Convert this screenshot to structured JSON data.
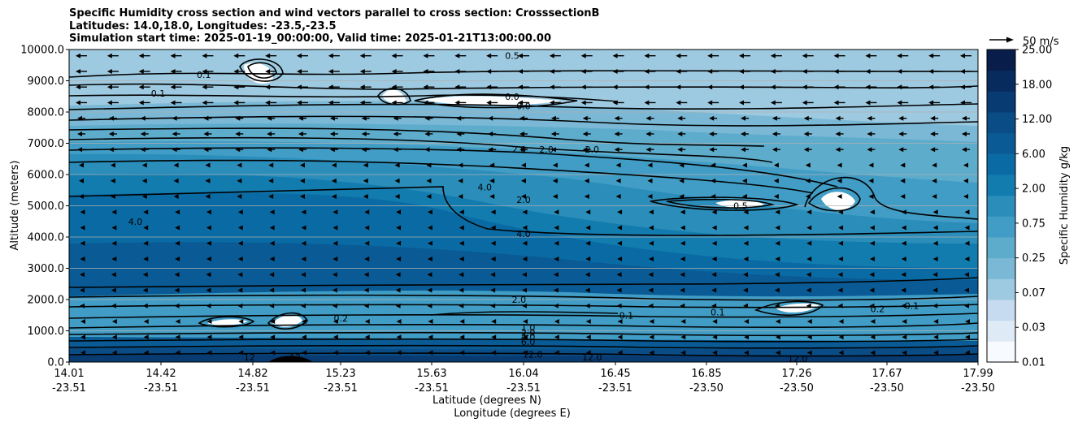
{
  "title_lines": [
    "Specific Humidity cross section and wind vectors parallel to cross section: CrosssectionB",
    "Latitudes: 14.0,18.0, Longitudes: -23.5,-23.5",
    "Simulation start time: 2025-01-19_00:00:00, Valid time: 2025-01-21T13:00:00.00"
  ],
  "chart_data": {
    "type": "heatmap",
    "ylabel": "Altitude (meters)",
    "xlabel_lines": [
      "Latitude (degrees N)",
      "Longitude (degrees E)"
    ],
    "ylim": [
      0,
      10000
    ],
    "yticks": [
      "0.0",
      "1000.0",
      "2000.0",
      "3000.0",
      "4000.0",
      "5000.0",
      "6000.0",
      "7000.0",
      "8000.0",
      "9000.0",
      "10000.0"
    ],
    "xticks": [
      {
        "lat": "14.01",
        "lon": "-23.51"
      },
      {
        "lat": "14.42",
        "lon": "-23.51"
      },
      {
        "lat": "14.82",
        "lon": "-23.51"
      },
      {
        "lat": "15.23",
        "lon": "-23.51"
      },
      {
        "lat": "15.63",
        "lon": "-23.51"
      },
      {
        "lat": "16.04",
        "lon": "-23.51"
      },
      {
        "lat": "16.45",
        "lon": "-23.51"
      },
      {
        "lat": "16.85",
        "lon": "-23.50"
      },
      {
        "lat": "17.26",
        "lon": "-23.50"
      },
      {
        "lat": "17.67",
        "lon": "-23.50"
      },
      {
        "lat": "17.99",
        "lon": "-23.50"
      }
    ],
    "colorbar_label": "Specific Humidity g/kg",
    "colorbar_ticks": [
      "0.01",
      "0.03",
      "0.07",
      "0.25",
      "0.75",
      "2.00",
      "6.00",
      "12.00",
      "18.00",
      "25.00"
    ],
    "quiver_key": "50 m/s",
    "contour_labels": [
      {
        "text": "0.0",
        "lat": 15.95,
        "alt": 8500
      },
      {
        "text": "0.0",
        "lat": 16.0,
        "alt": 8200
      },
      {
        "text": "2.0",
        "lat": 15.98,
        "alt": 6800
      },
      {
        "text": "2.0",
        "lat": 16.1,
        "alt": 6800
      },
      {
        "text": "2.0",
        "lat": 16.3,
        "alt": 6800
      },
      {
        "text": "2.0",
        "lat": 16.0,
        "alt": 5200
      },
      {
        "text": "4.0",
        "lat": 16.0,
        "alt": 4100
      },
      {
        "text": "4.0",
        "lat": 15.83,
        "alt": 5600
      },
      {
        "text": "4.0",
        "lat": 14.3,
        "alt": 4500
      },
      {
        "text": "2.0",
        "lat": 15.98,
        "alt": 2000
      },
      {
        "text": "1.0",
        "lat": 16.02,
        "alt": 1100
      },
      {
        "text": "2.0",
        "lat": 16.02,
        "alt": 950
      },
      {
        "text": "4.0",
        "lat": 16.02,
        "alt": 800
      },
      {
        "text": "6.0",
        "lat": 16.02,
        "alt": 650
      },
      {
        "text": "12.0",
        "lat": 16.04,
        "alt": 250
      },
      {
        "text": "12.0",
        "lat": 16.3,
        "alt": 150
      },
      {
        "text": "12.0",
        "lat": 17.2,
        "alt": 100
      },
      {
        "text": "12",
        "lat": 14.8,
        "alt": 150
      },
      {
        "text": "12",
        "lat": 15.0,
        "alt": 150
      },
      {
        "text": "0.1",
        "lat": 14.6,
        "alt": 9200
      },
      {
        "text": "0.1",
        "lat": 14.4,
        "alt": 8600
      },
      {
        "text": "0.5",
        "lat": 15.95,
        "alt": 9800
      },
      {
        "text": "0.1",
        "lat": 16.85,
        "alt": 1600
      },
      {
        "text": "0.2",
        "lat": 17.55,
        "alt": 1700
      },
      {
        "text": "0.1",
        "lat": 17.7,
        "alt": 1800
      },
      {
        "text": "0.5",
        "lat": 16.95,
        "alt": 5000
      },
      {
        "text": "0.2",
        "lat": 15.2,
        "alt": 1400
      },
      {
        "text": "0.1",
        "lat": 16.45,
        "alt": 1500
      }
    ]
  },
  "colors": {
    "levels": [
      "#f7fbff",
      "#deebf7",
      "#c6dbef",
      "#9ecae1",
      "#7ab8d6",
      "#5eaccc",
      "#419dc5",
      "#2a8dba",
      "#137caf",
      "#0a6ba4",
      "#0a5b95",
      "#0a4c85",
      "#083b72",
      "#082b5e",
      "#081d4a"
    ]
  }
}
